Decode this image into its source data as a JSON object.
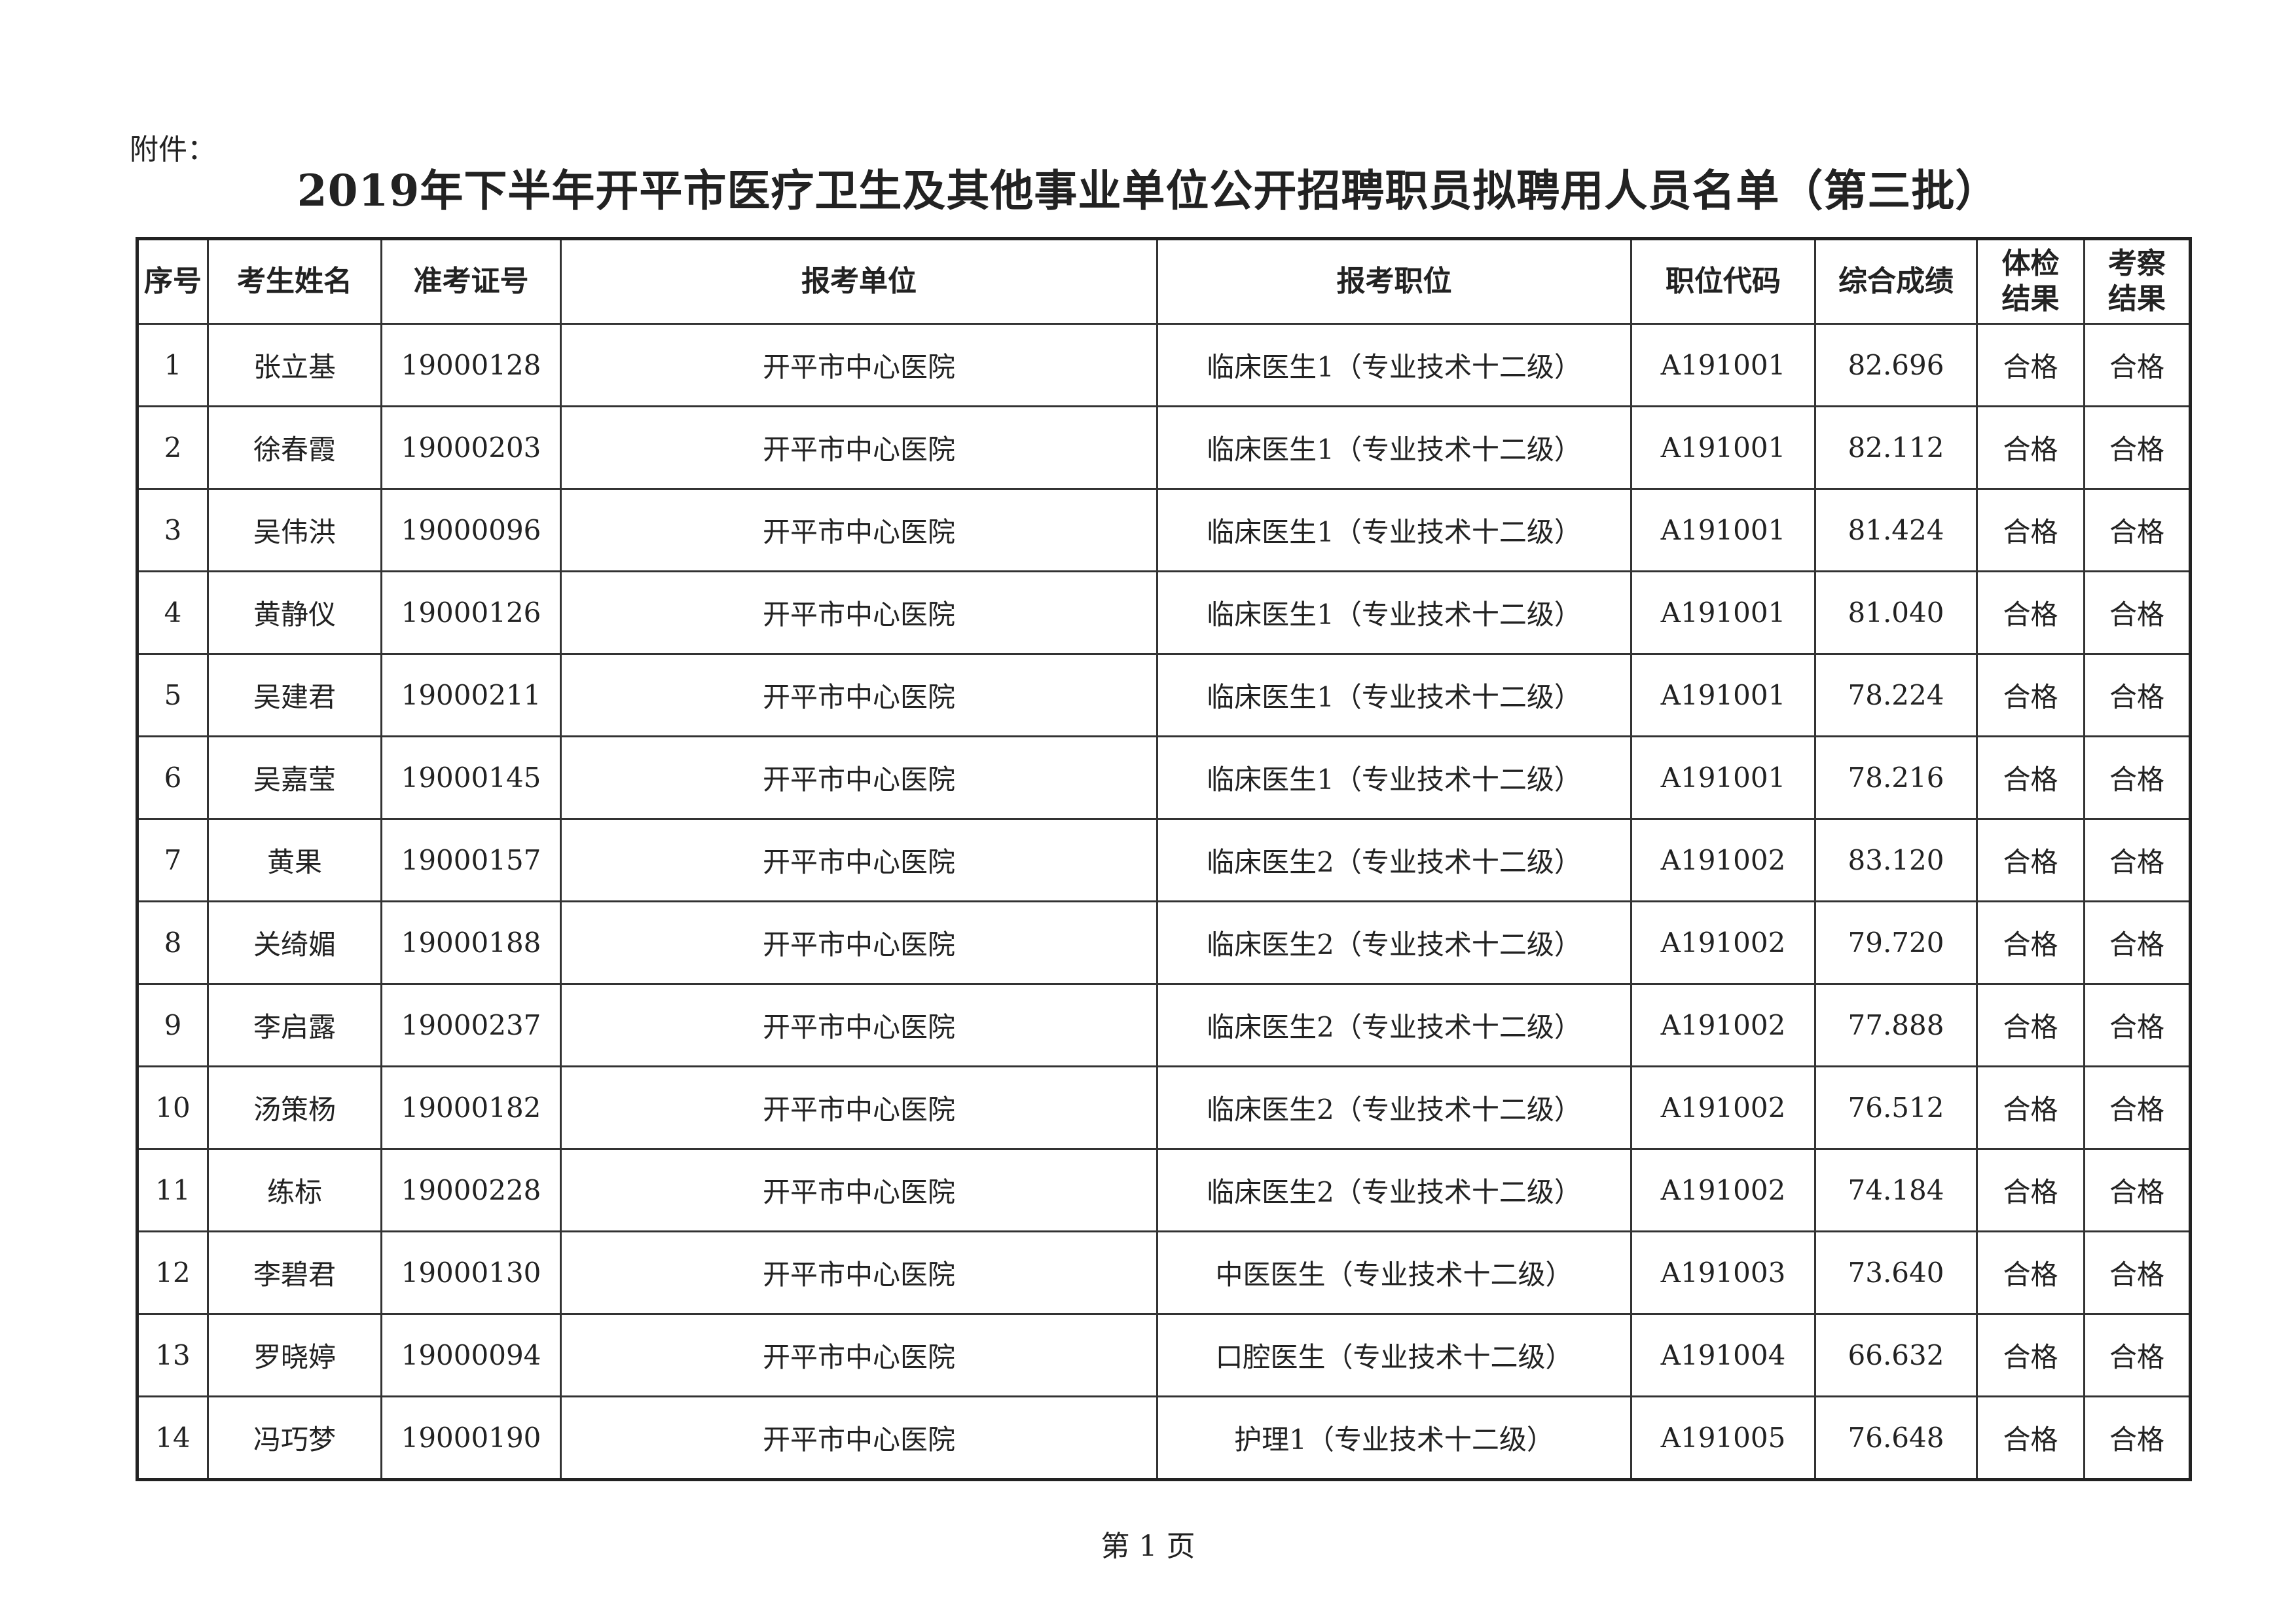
{
  "attachment_label": "附件：",
  "title": "2019年下半年开平市医疗卫生及其他事业单位公开招聘职员拟聘用人员名单（第三批）",
  "table": {
    "headers": [
      "序号",
      "考生姓名",
      "准考证号",
      "报考单位",
      "报考职位",
      "职位代码",
      "综合成绩",
      "体检结果",
      "考察结果"
    ],
    "rows": [
      [
        "1",
        "张立基",
        "19000128",
        "开平市中心医院",
        "临床医生1（专业技术十二级）",
        "A191001",
        "82.696",
        "合格",
        "合格"
      ],
      [
        "2",
        "徐春霞",
        "19000203",
        "开平市中心医院",
        "临床医生1（专业技术十二级）",
        "A191001",
        "82.112",
        "合格",
        "合格"
      ],
      [
        "3",
        "吴伟洪",
        "19000096",
        "开平市中心医院",
        "临床医生1（专业技术十二级）",
        "A191001",
        "81.424",
        "合格",
        "合格"
      ],
      [
        "4",
        "黄静仪",
        "19000126",
        "开平市中心医院",
        "临床医生1（专业技术十二级）",
        "A191001",
        "81.040",
        "合格",
        "合格"
      ],
      [
        "5",
        "吴建君",
        "19000211",
        "开平市中心医院",
        "临床医生1（专业技术十二级）",
        "A191001",
        "78.224",
        "合格",
        "合格"
      ],
      [
        "6",
        "吴嘉莹",
        "19000145",
        "开平市中心医院",
        "临床医生1（专业技术十二级）",
        "A191001",
        "78.216",
        "合格",
        "合格"
      ],
      [
        "7",
        "黄果",
        "19000157",
        "开平市中心医院",
        "临床医生2（专业技术十二级）",
        "A191002",
        "83.120",
        "合格",
        "合格"
      ],
      [
        "8",
        "关绮媚",
        "19000188",
        "开平市中心医院",
        "临床医生2（专业技术十二级）",
        "A191002",
        "79.720",
        "合格",
        "合格"
      ],
      [
        "9",
        "李启露",
        "19000237",
        "开平市中心医院",
        "临床医生2（专业技术十二级）",
        "A191002",
        "77.888",
        "合格",
        "合格"
      ],
      [
        "10",
        "汤策杨",
        "19000182",
        "开平市中心医院",
        "临床医生2（专业技术十二级）",
        "A191002",
        "76.512",
        "合格",
        "合格"
      ],
      [
        "11",
        "练标",
        "19000228",
        "开平市中心医院",
        "临床医生2（专业技术十二级）",
        "A191002",
        "74.184",
        "合格",
        "合格"
      ],
      [
        "12",
        "李碧君",
        "19000130",
        "开平市中心医院",
        "中医医生（专业技术十二级）",
        "A191003",
        "73.640",
        "合格",
        "合格"
      ],
      [
        "13",
        "罗晓婷",
        "19000094",
        "开平市中心医院",
        "口腔医生（专业技术十二级）",
        "A191004",
        "66.632",
        "合格",
        "合格"
      ],
      [
        "14",
        "冯巧梦",
        "19000190",
        "开平市中心医院",
        "护理1（专业技术十二级）",
        "A191005",
        "76.648",
        "合格",
        "合格"
      ]
    ]
  },
  "footer": "第 1 页"
}
